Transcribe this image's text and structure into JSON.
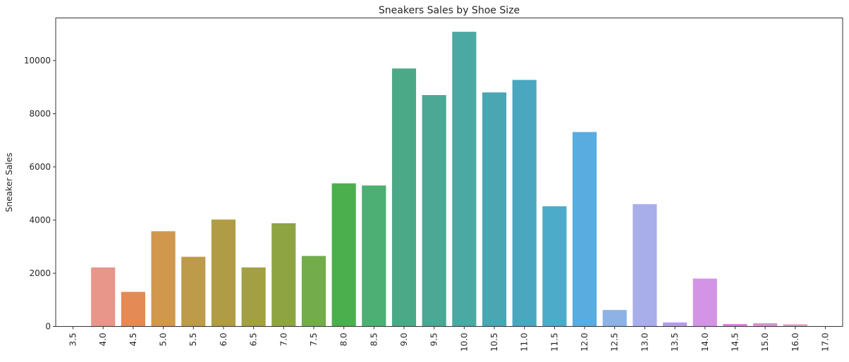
{
  "chart_data": {
    "type": "bar",
    "title": "Sneakers Sales by Shoe Size",
    "xlabel": "",
    "ylabel": "Sneaker Sales",
    "ylim": [
      0,
      11600
    ],
    "yticks": [
      0,
      2000,
      4000,
      6000,
      8000,
      10000
    ],
    "ytick_labels": [
      "0",
      "2000",
      "4000",
      "6000",
      "8000",
      "10000"
    ],
    "grid": false,
    "categories": [
      "3.5",
      "4.0",
      "4.5",
      "5.0",
      "5.5",
      "6.0",
      "6.5",
      "7.0",
      "7.5",
      "8.0",
      "8.5",
      "9.0",
      "9.5",
      "10.0",
      "10.5",
      "11.0",
      "11.5",
      "12.0",
      "12.5",
      "13.0",
      "13.5",
      "14.0",
      "14.5",
      "15.0",
      "16.0",
      "17.0"
    ],
    "values": [
      5,
      2220,
      1300,
      3580,
      2620,
      4020,
      2220,
      3880,
      2650,
      5380,
      5300,
      9700,
      8700,
      11080,
      8800,
      9270,
      4520,
      7310,
      620,
      4600,
      150,
      1800,
      90,
      120,
      80,
      5
    ],
    "colors": [
      "#e8a39a",
      "#e8958a",
      "#e38a55",
      "#d1974d",
      "#bd9b4b",
      "#b09c44",
      "#a3a043",
      "#8ea443",
      "#73ac4a",
      "#4caf4d",
      "#4daf73",
      "#4ca987",
      "#4aa894",
      "#4ba9a3",
      "#4aa6b2",
      "#4aa7bf",
      "#4babc9",
      "#58acdf",
      "#8fb2e6",
      "#a8aeea",
      "#b29ee9",
      "#d394e6",
      "#e27ad6",
      "#e08fd1",
      "#e49ac0",
      "#e8a0b0"
    ]
  }
}
